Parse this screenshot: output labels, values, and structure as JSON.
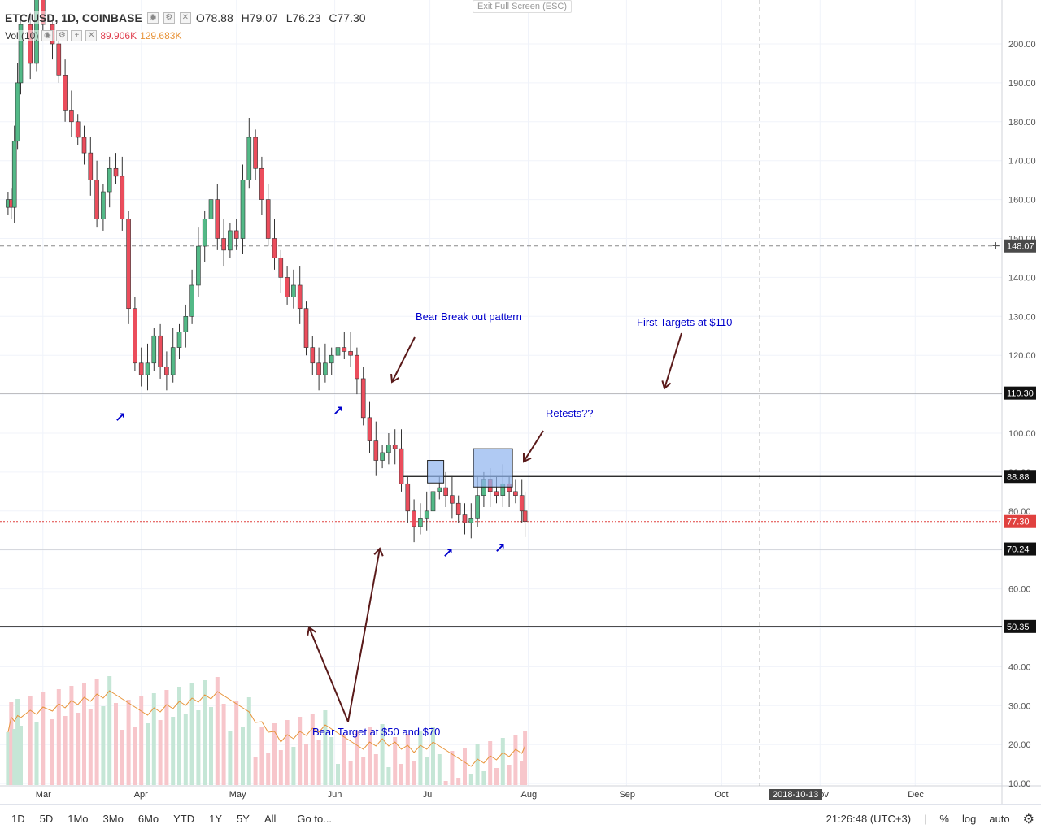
{
  "legend": {
    "symbol": "ETC/USD, 1D, COINBASE",
    "open": "O78.88",
    "high": "H79.07",
    "low": "L76.23",
    "close": "C77.30",
    "vol_label": "Vol (10)",
    "vol_value1": "89.906K",
    "vol_value2": "129.683K"
  },
  "exit_fullscreen": "Exit Full Screen (ESC)",
  "colors": {
    "up": "#53b987",
    "down": "#eb4d5c",
    "up_vol": "#c5e6d6",
    "down_vol": "#f7c6cb",
    "annotation": "#0000cc",
    "arrow": "#5a1a1a",
    "highlight": "#8fb3ee",
    "price_line": "#e0413f"
  },
  "annotations": {
    "bear_break": "Bear Break out pattern",
    "first_targets": "First Targets at $110",
    "retests": "Retests??",
    "bear_target": "Bear Target at $50 and $70"
  },
  "price_labels": {
    "p148": "148.07",
    "p110": "110.30",
    "p88": "88.88",
    "p77": "77.30",
    "p70": "70.24",
    "p50": "50.35"
  },
  "time_labels": [
    "Mar",
    "Apr",
    "May",
    "Jun",
    "Jul",
    "Aug",
    "Sep",
    "Oct",
    "Nov",
    "Dec"
  ],
  "crosshair_date": "2018-10-13",
  "bottom_bar": {
    "ranges": [
      "1D",
      "5D",
      "1Mo",
      "3Mo",
      "6Mo",
      "YTD",
      "1Y",
      "5Y",
      "All"
    ],
    "goto": "Go to...",
    "clock": "21:26:48 (UTC+3)",
    "percent": "%",
    "log": "log",
    "auto": "auto"
  },
  "chart_data": {
    "type": "candlestick",
    "title": "ETC/USD, 1D, COINBASE",
    "y_axis_ticks": [
      10,
      20,
      30,
      40,
      50,
      60,
      70,
      80,
      90,
      100,
      110,
      120,
      130,
      140,
      150,
      160,
      170,
      180,
      190,
      200
    ],
    "y_axis_tick_labels": [
      "10.00",
      "20.00",
      "30.00",
      "40.00",
      "50.00",
      "60.00",
      "70.00",
      "80.00",
      "90.00",
      "100.00",
      "110.00",
      "120.00",
      "130.00",
      "140.00",
      "150.00",
      "160.00",
      "170.00",
      "180.00",
      "190.00",
      "200.00"
    ],
    "horizontal_levels": [
      110.3,
      88.88,
      70.24,
      50.35
    ],
    "current_price": 77.3,
    "crosshair_price": 148.07,
    "close_series": [
      {
        "date": "2018-02-18",
        "close": 160
      },
      {
        "date": "2018-02-19",
        "close": 158
      },
      {
        "date": "2018-02-20",
        "close": 175
      },
      {
        "date": "2018-02-21",
        "close": 190
      },
      {
        "date": "2018-02-22",
        "close": 205
      },
      {
        "date": "2018-02-25",
        "close": 195
      },
      {
        "date": "2018-02-27",
        "close": 212
      },
      {
        "date": "2018-03-01",
        "close": 205
      },
      {
        "date": "2018-03-04",
        "close": 200
      },
      {
        "date": "2018-03-06",
        "close": 192
      },
      {
        "date": "2018-03-08",
        "close": 183
      },
      {
        "date": "2018-03-10",
        "close": 180
      },
      {
        "date": "2018-03-12",
        "close": 176
      },
      {
        "date": "2018-03-14",
        "close": 172
      },
      {
        "date": "2018-03-16",
        "close": 165
      },
      {
        "date": "2018-03-18",
        "close": 155
      },
      {
        "date": "2018-03-20",
        "close": 162
      },
      {
        "date": "2018-03-22",
        "close": 168
      },
      {
        "date": "2018-03-24",
        "close": 166
      },
      {
        "date": "2018-03-26",
        "close": 155
      },
      {
        "date": "2018-03-28",
        "close": 132
      },
      {
        "date": "2018-03-30",
        "close": 118
      },
      {
        "date": "2018-04-01",
        "close": 115
      },
      {
        "date": "2018-04-03",
        "close": 118
      },
      {
        "date": "2018-04-05",
        "close": 125
      },
      {
        "date": "2018-04-07",
        "close": 117
      },
      {
        "date": "2018-04-09",
        "close": 115
      },
      {
        "date": "2018-04-11",
        "close": 122
      },
      {
        "date": "2018-04-13",
        "close": 126
      },
      {
        "date": "2018-04-15",
        "close": 130
      },
      {
        "date": "2018-04-17",
        "close": 138
      },
      {
        "date": "2018-04-19",
        "close": 148
      },
      {
        "date": "2018-04-21",
        "close": 155
      },
      {
        "date": "2018-04-23",
        "close": 160
      },
      {
        "date": "2018-04-25",
        "close": 150
      },
      {
        "date": "2018-04-27",
        "close": 147
      },
      {
        "date": "2018-04-29",
        "close": 152
      },
      {
        "date": "2018-05-01",
        "close": 150
      },
      {
        "date": "2018-05-03",
        "close": 165
      },
      {
        "date": "2018-05-05",
        "close": 176
      },
      {
        "date": "2018-05-07",
        "close": 168
      },
      {
        "date": "2018-05-09",
        "close": 160
      },
      {
        "date": "2018-05-11",
        "close": 150
      },
      {
        "date": "2018-05-13",
        "close": 145
      },
      {
        "date": "2018-05-15",
        "close": 140
      },
      {
        "date": "2018-05-17",
        "close": 135
      },
      {
        "date": "2018-05-19",
        "close": 138
      },
      {
        "date": "2018-05-21",
        "close": 132
      },
      {
        "date": "2018-05-23",
        "close": 122
      },
      {
        "date": "2018-05-25",
        "close": 118
      },
      {
        "date": "2018-05-27",
        "close": 115
      },
      {
        "date": "2018-05-29",
        "close": 118
      },
      {
        "date": "2018-05-31",
        "close": 120
      },
      {
        "date": "2018-06-02",
        "close": 122
      },
      {
        "date": "2018-06-04",
        "close": 121
      },
      {
        "date": "2018-06-06",
        "close": 120
      },
      {
        "date": "2018-06-08",
        "close": 114
      },
      {
        "date": "2018-06-10",
        "close": 104
      },
      {
        "date": "2018-06-12",
        "close": 98
      },
      {
        "date": "2018-06-14",
        "close": 93
      },
      {
        "date": "2018-06-16",
        "close": 95
      },
      {
        "date": "2018-06-18",
        "close": 97
      },
      {
        "date": "2018-06-20",
        "close": 96
      },
      {
        "date": "2018-06-22",
        "close": 87
      },
      {
        "date": "2018-06-24",
        "close": 80
      },
      {
        "date": "2018-06-26",
        "close": 76
      },
      {
        "date": "2018-06-28",
        "close": 78
      },
      {
        "date": "2018-06-30",
        "close": 80
      },
      {
        "date": "2018-07-02",
        "close": 85
      },
      {
        "date": "2018-07-04",
        "close": 86
      },
      {
        "date": "2018-07-06",
        "close": 84
      },
      {
        "date": "2018-07-08",
        "close": 82
      },
      {
        "date": "2018-07-10",
        "close": 79
      },
      {
        "date": "2018-07-12",
        "close": 77
      },
      {
        "date": "2018-07-14",
        "close": 78
      },
      {
        "date": "2018-07-16",
        "close": 84
      },
      {
        "date": "2018-07-18",
        "close": 88
      },
      {
        "date": "2018-07-20",
        "close": 85
      },
      {
        "date": "2018-07-22",
        "close": 84
      },
      {
        "date": "2018-07-24",
        "close": 87
      },
      {
        "date": "2018-07-26",
        "close": 85
      },
      {
        "date": "2018-07-28",
        "close": 84
      },
      {
        "date": "2018-07-30",
        "close": 80
      },
      {
        "date": "2018-07-31",
        "close": 77.3
      }
    ]
  }
}
